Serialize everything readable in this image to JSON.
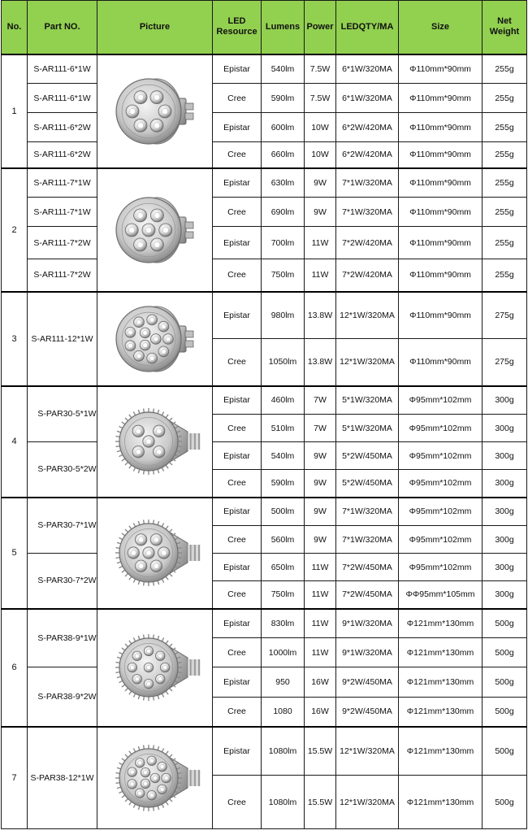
{
  "headers": {
    "no": "No.",
    "part": "Part NO.",
    "picture": "Picture",
    "led": "LED Resource",
    "lumens": "Lumens",
    "power": "Power",
    "ledqty": "LEDQTY/MA",
    "size": "Size",
    "weight": "Net Weight"
  },
  "colors": {
    "header_bg": "#92d050"
  },
  "groups": [
    {
      "no": "1",
      "picture_icon": "ar111-lamp-icon",
      "rows": [
        {
          "part": "S-AR111-6*1W",
          "led": "Epistar",
          "lumens": "540lm",
          "power": "7.5W",
          "qty": "6*1W/320MA",
          "size": "Φ110mm*90mm",
          "weight": "255g"
        },
        {
          "part": "S-AR111-6*1W",
          "led": "Cree",
          "lumens": "590lm",
          "power": "7.5W",
          "qty": "6*1W/320MA",
          "size": "Φ110mm*90mm",
          "weight": "255g"
        },
        {
          "part": "S-AR111-6*2W",
          "led": "Epistar",
          "lumens": "600lm",
          "power": "10W",
          "qty": "6*2W/420MA",
          "size": "Φ110mm*90mm",
          "weight": "255g"
        },
        {
          "part": "S-AR111-6*2W",
          "led": "Cree",
          "lumens": "660lm",
          "power": "10W",
          "qty": "6*2W/420MA",
          "size": "Φ110mm*90mm",
          "weight": "255g"
        }
      ]
    },
    {
      "no": "2",
      "picture_icon": "ar111-lamp-icon",
      "rows": [
        {
          "part": "S-AR111-7*1W",
          "led": "Epistar",
          "lumens": "630lm",
          "power": "9W",
          "qty": "7*1W/320MA",
          "size": "Φ110mm*90mm",
          "weight": "255g"
        },
        {
          "part": "S-AR111-7*1W",
          "led": "Cree",
          "lumens": "690lm",
          "power": "9W",
          "qty": "7*1W/320MA",
          "size": "Φ110mm*90mm",
          "weight": "255g"
        },
        {
          "part": "S-AR111-7*2W",
          "led": "Epistar",
          "lumens": "700lm",
          "power": "11W",
          "qty": "7*2W/420MA",
          "size": "Φ110mm*90mm",
          "weight": "255g"
        },
        {
          "part": "S-AR111-7*2W",
          "led": "Cree",
          "lumens": "750lm",
          "power": "11W",
          "qty": "7*2W/420MA",
          "size": "Φ110mm*90mm",
          "weight": "255g"
        }
      ]
    },
    {
      "no": "3",
      "picture_icon": "ar111-lamp-icon",
      "part_single": "S-AR111-12*1W",
      "rows": [
        {
          "led": "Epistar",
          "lumens": "980lm",
          "power": "13.8W",
          "qty": "12*1W/320MA",
          "size": "Φ110mm*90mm",
          "weight": "275g"
        },
        {
          "led": "Cree",
          "lumens": "1050lm",
          "power": "13.8W",
          "qty": "12*1W/320MA",
          "size": "Φ110mm*90mm",
          "weight": "275g"
        }
      ]
    },
    {
      "no": "4",
      "picture_icon": "par30-lamp-icon",
      "parts": [
        "S-PAR30-5*1W",
        "S-PAR30-5*2W"
      ],
      "rows": [
        {
          "led": "Epistar",
          "lumens": "460lm",
          "power": "7W",
          "qty": "5*1W/320MA",
          "size": "Φ95mm*102mm",
          "weight": "300g"
        },
        {
          "led": "Cree",
          "lumens": "510lm",
          "power": "7W",
          "qty": "5*1W/320MA",
          "size": "Φ95mm*102mm",
          "weight": "300g"
        },
        {
          "led": "Epistar",
          "lumens": "540lm",
          "power": "9W",
          "qty": "5*2W/450MA",
          "size": "Φ95mm*102mm",
          "weight": "300g"
        },
        {
          "led": "Cree",
          "lumens": "590lm",
          "power": "9W",
          "qty": "5*2W/450MA",
          "size": "Φ95mm*102mm",
          "weight": "300g"
        }
      ]
    },
    {
      "no": "5",
      "picture_icon": "par30-lamp-icon",
      "parts": [
        "S-PAR30-7*1W",
        "S-PAR30-7*2W"
      ],
      "rows": [
        {
          "led": "Epistar",
          "lumens": "500lm",
          "power": "9W",
          "qty": "7*1W/320MA",
          "size": "Φ95mm*102mm",
          "weight": "300g"
        },
        {
          "led": "Cree",
          "lumens": "560lm",
          "power": "9W",
          "qty": "7*1W/320MA",
          "size": "Φ95mm*102mm",
          "weight": "300g"
        },
        {
          "led": "Epistar",
          "lumens": "650lm",
          "power": "11W",
          "qty": "7*2W/450MA",
          "size": "Φ95mm*102mm",
          "weight": "300g"
        },
        {
          "led": "Cree",
          "lumens": "750lm",
          "power": "11W",
          "qty": "7*2W/450MA",
          "size": "ΦΦ95mm*105mm",
          "weight": "300g"
        }
      ]
    },
    {
      "no": "6",
      "picture_icon": "par38-lamp-icon",
      "parts": [
        "S-PAR38-9*1W",
        "S-PAR38-9*2W"
      ],
      "rows": [
        {
          "led": "Epistar",
          "lumens": "830lm",
          "power": "11W",
          "qty": "9*1W/320MA",
          "size": "Φ121mm*130mm",
          "weight": "500g"
        },
        {
          "led": "Cree",
          "lumens": "1000lm",
          "power": "11W",
          "qty": "9*1W/320MA",
          "size": "Φ121mm*130mm",
          "weight": "500g"
        },
        {
          "led": "Epistar",
          "lumens": "950",
          "power": "16W",
          "qty": "9*2W/450MA",
          "size": "Φ121mm*130mm",
          "weight": "500g"
        },
        {
          "led": "Cree",
          "lumens": "1080",
          "power": "16W",
          "qty": "9*2W/450MA",
          "size": "Φ121mm*130mm",
          "weight": "500g"
        }
      ]
    },
    {
      "no": "7",
      "picture_icon": "par38-lamp-icon",
      "part_single": "S-PAR38-12*1W",
      "rows": [
        {
          "led": "Epistar",
          "lumens": "1080lm",
          "power": "15.5W",
          "qty": "12*1W/320MA",
          "size": "Φ121mm*130mm",
          "weight": "500g"
        },
        {
          "led": "Cree",
          "lumens": "1080lm",
          "power": "15.5W",
          "qty": "12*1W/320MA",
          "size": "Φ121mm*130mm",
          "weight": "500g"
        }
      ]
    }
  ]
}
